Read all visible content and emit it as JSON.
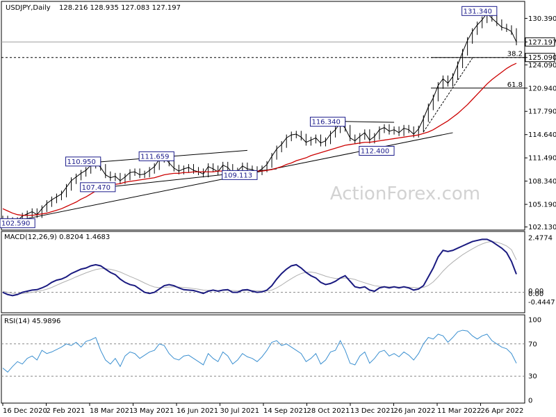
{
  "header": {
    "symbol": "USDJPY,Daily",
    "ohlc": "128.216 128.935 127.083 127.197"
  },
  "watermark": "ActionForex.com",
  "colors": {
    "price": "#000000",
    "ma": "#cc0000",
    "macd": "#1a1a80",
    "signal": "#b0b0b0",
    "rsi": "#3a8fd0",
    "box_text": "#1a1a8a",
    "grid_dash": "#888888"
  },
  "chart_data": [
    {
      "type": "line",
      "panel": "price",
      "y_ticks": [
        "130.390",
        "127.197",
        "125.090",
        "124.090",
        "120.940",
        "117.790",
        "114.640",
        "111.490",
        "108.340",
        "105.190",
        "102.130"
      ],
      "ylim": [
        101.9,
        132.5
      ],
      "x_ticks": [
        "16 Dec 2020",
        "2 Feb 2021",
        "18 Mar 2021",
        "3 May 2021",
        "16 Jun 2021",
        "30 Jul 2021",
        "14 Sep 2021",
        "28 Oct 2021",
        "13 Dec 2021",
        "26 Jan 2022",
        "11 Mar 2022",
        "26 Apr 2022"
      ],
      "current_price": "127.197",
      "fib_level_value": "125.090",
      "fib_labels": [
        "38.2",
        "61.8"
      ],
      "fib_values": [
        125.09,
        120.94
      ],
      "annotations": [
        "102.590",
        "110.950",
        "111.659",
        "107.470",
        "109.113",
        "116.340",
        "112.400",
        "131.340"
      ],
      "series": [
        {
          "values": [
            103.2,
            103.0,
            102.8,
            103.0,
            103.6,
            103.9,
            104.2,
            103.8,
            104.6,
            105.3,
            105.8,
            106.2,
            106.6,
            107.5,
            108.4,
            108.9,
            109.4,
            109.8,
            110.5,
            110.9,
            110.2,
            109.2,
            108.8,
            109.0,
            108.4,
            108.9,
            109.5,
            109.6,
            109.2,
            109.3,
            109.8,
            110.3,
            111.3,
            111.6,
            110.8,
            110.1,
            109.7,
            110.0,
            110.2,
            109.8,
            109.6,
            109.3,
            110.3,
            110.0,
            109.6,
            110.5,
            110.2,
            109.4,
            109.7,
            110.4,
            110.0,
            109.9,
            109.6,
            110.0,
            110.6,
            111.7,
            112.7,
            113.3,
            114.2,
            114.6,
            114.7,
            114.3,
            113.6,
            113.9,
            114.2,
            113.5,
            113.8,
            114.7,
            115.3,
            116.3,
            115.5,
            114.2,
            113.8,
            114.4,
            114.9,
            113.9,
            114.4,
            115.3,
            115.6,
            115.1,
            115.3,
            114.9,
            115.5,
            115.3,
            114.7,
            115.4,
            116.8,
            118.4,
            119.6,
            121.3,
            122.2,
            121.6,
            122.5,
            124.1,
            125.8,
            127.4,
            128.6,
            129.5,
            130.2,
            131.1,
            130.4,
            129.8,
            129.2,
            129.0,
            128.6,
            127.2
          ]
        },
        {
          "values": [
            104.6,
            104.3,
            104.0,
            103.8,
            103.7,
            103.7,
            103.7,
            103.8,
            103.9,
            104.0,
            104.2,
            104.4,
            104.6,
            104.9,
            105.2,
            105.5,
            105.9,
            106.2,
            106.6,
            107.0,
            107.3,
            107.5,
            107.7,
            107.9,
            108.0,
            108.2,
            108.3,
            108.4,
            108.5,
            108.6,
            108.7,
            108.8,
            109.0,
            109.2,
            109.3,
            109.4,
            109.4,
            109.5,
            109.5,
            109.6,
            109.6,
            109.6,
            109.6,
            109.6,
            109.7,
            109.7,
            109.7,
            109.7,
            109.7,
            109.7,
            109.7,
            109.7,
            109.7,
            109.7,
            109.8,
            109.9,
            110.1,
            110.3,
            110.6,
            110.8,
            111.1,
            111.3,
            111.5,
            111.8,
            112.0,
            112.2,
            112.4,
            112.6,
            112.8,
            113.0,
            113.2,
            113.3,
            113.4,
            113.5,
            113.6,
            113.6,
            113.7,
            113.8,
            113.9,
            114.0,
            114.1,
            114.2,
            114.3,
            114.4,
            114.5,
            114.6,
            114.8,
            115.0,
            115.3,
            115.7,
            116.1,
            116.5,
            117.0,
            117.5,
            118.1,
            118.7,
            119.4,
            120.1,
            120.8,
            121.5,
            122.1,
            122.6,
            123.1,
            123.6,
            124.0,
            124.3
          ]
        }
      ]
    },
    {
      "type": "line",
      "panel": "macd",
      "title": "MACD(12,26,9) 0.8204 1.4683",
      "y_ticks": [
        "2.4774",
        "0.00",
        "0.00",
        "-0.4447"
      ],
      "ylim": [
        -0.8,
        2.6
      ],
      "series": [
        {
          "values": [
            0.0,
            -0.1,
            -0.15,
            -0.1,
            0.0,
            0.05,
            0.1,
            0.12,
            0.2,
            0.3,
            0.45,
            0.55,
            0.6,
            0.7,
            0.85,
            0.95,
            1.05,
            1.1,
            1.2,
            1.25,
            1.2,
            1.05,
            0.9,
            0.8,
            0.6,
            0.45,
            0.35,
            0.3,
            0.15,
            0.0,
            -0.05,
            0.0,
            0.15,
            0.3,
            0.35,
            0.3,
            0.2,
            0.12,
            0.1,
            0.08,
            0.02,
            -0.05,
            0.05,
            0.1,
            0.05,
            0.1,
            0.12,
            0.0,
            0.0,
            0.1,
            0.12,
            0.05,
            0.0,
            0.02,
            0.1,
            0.3,
            0.6,
            0.85,
            1.05,
            1.2,
            1.25,
            1.1,
            0.9,
            0.75,
            0.65,
            0.45,
            0.35,
            0.4,
            0.5,
            0.65,
            0.75,
            0.5,
            0.25,
            0.2,
            0.25,
            0.1,
            0.05,
            0.2,
            0.25,
            0.2,
            0.25,
            0.2,
            0.25,
            0.2,
            0.1,
            0.15,
            0.3,
            0.7,
            1.1,
            1.6,
            1.9,
            1.85,
            1.9,
            2.0,
            2.1,
            2.2,
            2.3,
            2.35,
            2.4,
            2.4,
            2.3,
            2.15,
            2.0,
            1.8,
            1.4,
            0.82
          ]
        },
        {
          "values": [
            0.05,
            0.0,
            -0.05,
            -0.08,
            -0.06,
            -0.03,
            0.0,
            0.04,
            0.08,
            0.14,
            0.22,
            0.32,
            0.42,
            0.51,
            0.6,
            0.7,
            0.79,
            0.88,
            0.96,
            1.03,
            1.07,
            1.07,
            1.04,
            0.99,
            0.92,
            0.82,
            0.72,
            0.63,
            0.53,
            0.42,
            0.32,
            0.24,
            0.21,
            0.22,
            0.24,
            0.25,
            0.24,
            0.22,
            0.2,
            0.17,
            0.14,
            0.1,
            0.09,
            0.09,
            0.08,
            0.09,
            0.09,
            0.08,
            0.07,
            0.07,
            0.08,
            0.08,
            0.07,
            0.06,
            0.06,
            0.1,
            0.2,
            0.33,
            0.48,
            0.62,
            0.75,
            0.85,
            0.91,
            0.92,
            0.88,
            0.81,
            0.73,
            0.67,
            0.63,
            0.63,
            0.65,
            0.63,
            0.58,
            0.5,
            0.43,
            0.36,
            0.3,
            0.27,
            0.26,
            0.25,
            0.25,
            0.24,
            0.24,
            0.23,
            0.22,
            0.2,
            0.22,
            0.31,
            0.47,
            0.7,
            0.96,
            1.18,
            1.37,
            1.54,
            1.7,
            1.84,
            1.97,
            2.09,
            2.19,
            2.27,
            2.3,
            2.27,
            2.2,
            2.1,
            1.93,
            1.47
          ]
        }
      ]
    },
    {
      "type": "line",
      "panel": "rsi",
      "title": "RSI(14) 45.9896",
      "y_ticks": [
        "100",
        "70",
        "30",
        "0"
      ],
      "ylim": [
        0,
        100
      ],
      "levels": [
        70,
        30
      ],
      "series": [
        {
          "values": [
            40,
            35,
            42,
            48,
            45,
            52,
            55,
            50,
            62,
            58,
            60,
            63,
            66,
            70,
            68,
            72,
            66,
            73,
            75,
            78,
            62,
            50,
            45,
            52,
            42,
            55,
            60,
            58,
            52,
            56,
            60,
            62,
            70,
            68,
            58,
            52,
            50,
            55,
            56,
            52,
            48,
            44,
            58,
            52,
            48,
            60,
            55,
            45,
            50,
            58,
            54,
            52,
            48,
            54,
            62,
            72,
            74,
            68,
            70,
            66,
            62,
            58,
            48,
            52,
            58,
            45,
            50,
            60,
            62,
            74,
            62,
            46,
            44,
            55,
            60,
            46,
            52,
            60,
            62,
            55,
            58,
            54,
            60,
            56,
            50,
            58,
            70,
            78,
            76,
            82,
            80,
            72,
            78,
            85,
            87,
            86,
            80,
            76,
            80,
            82,
            74,
            70,
            66,
            64,
            58,
            46
          ]
        }
      ]
    }
  ]
}
